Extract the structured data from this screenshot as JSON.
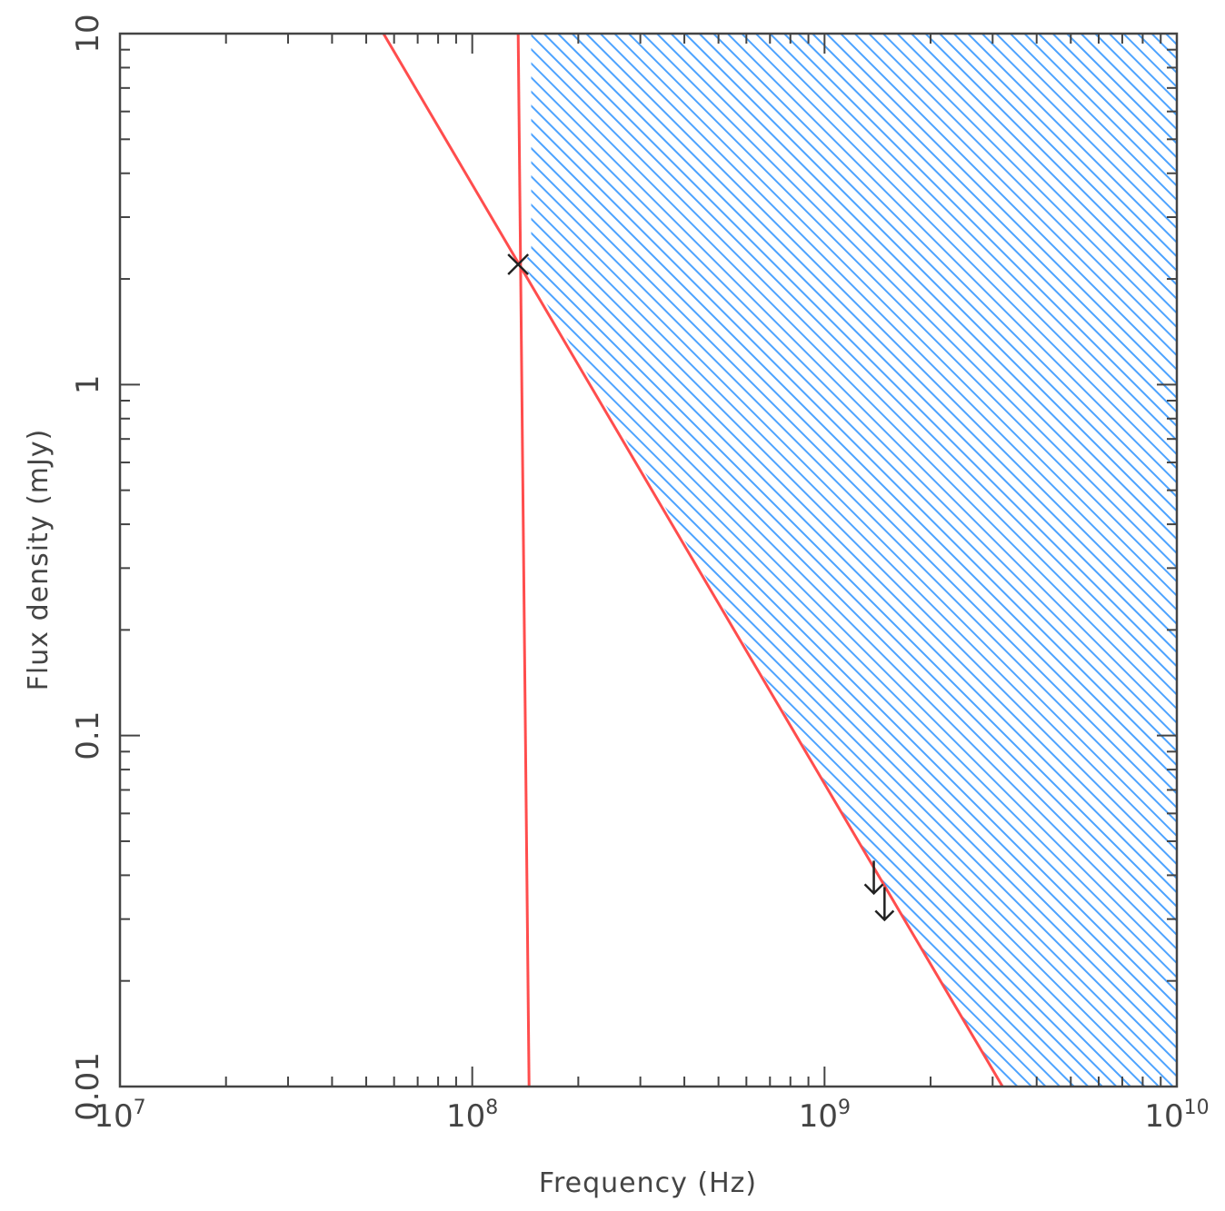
{
  "chart_data": {
    "type": "line",
    "title": "",
    "xlabel": "Frequency (Hz)",
    "ylabel": "Flux density (mJy)",
    "xscale": "log",
    "yscale": "log",
    "xlim": [
      10000000,
      10000000000
    ],
    "ylim": [
      0.01,
      10
    ],
    "grid": false,
    "x_ticks": [
      {
        "value": 10000000,
        "base": "10",
        "exp": "7"
      },
      {
        "value": 100000000,
        "base": "10",
        "exp": "8"
      },
      {
        "value": 1000000000,
        "base": "10",
        "exp": "9"
      },
      {
        "value": 10000000000,
        "base": "10",
        "exp": "10"
      }
    ],
    "y_ticks": [
      {
        "value": 0.01,
        "label": "0.01"
      },
      {
        "value": 0.1,
        "label": "0.1"
      },
      {
        "value": 1,
        "label": "1"
      },
      {
        "value": 10,
        "label": "10"
      }
    ],
    "series": [
      {
        "kind": "line",
        "color": "#ff4d4d",
        "points": [
          [
            56000000,
            10
          ],
          [
            3200000000,
            0.01
          ]
        ]
      },
      {
        "kind": "line",
        "color": "#ff4d4d",
        "points": [
          [
            135000000,
            10
          ],
          [
            145000000,
            0.01
          ]
        ]
      }
    ],
    "shaded_region": {
      "color": "#4da3ff",
      "pattern": "diagonal-hatch",
      "polygon": [
        [
          147000000,
          10
        ],
        [
          10000000000,
          10
        ],
        [
          10000000000,
          0.01
        ],
        [
          3200000000,
          0.01
        ],
        [
          140000000,
          2.2
        ],
        [
          147000000,
          2.4
        ]
      ]
    },
    "markers": [
      {
        "kind": "cross",
        "x": 135000000,
        "y": 2.2,
        "color": "#222222"
      }
    ],
    "upper_limits": [
      {
        "x": 1380000000,
        "y": 0.044,
        "color": "#222222"
      },
      {
        "x": 1480000000,
        "y": 0.037,
        "color": "#222222"
      }
    ]
  }
}
